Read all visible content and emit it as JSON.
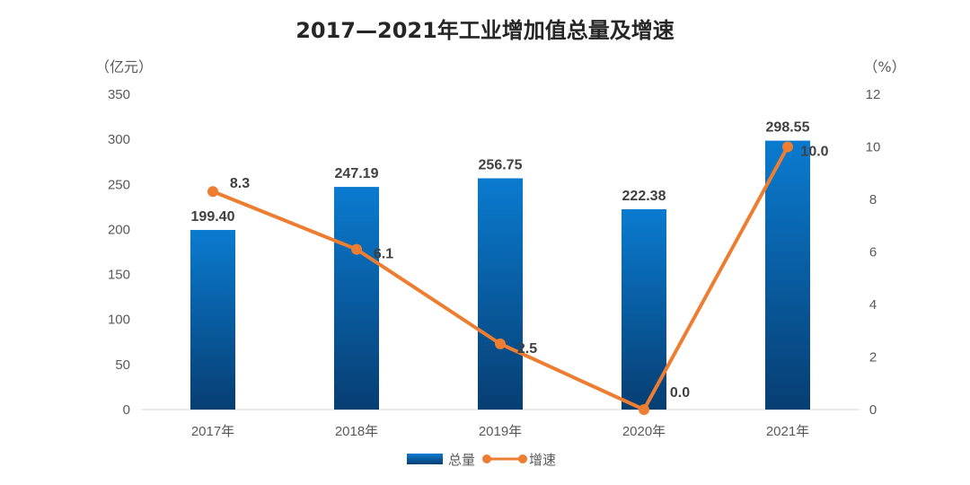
{
  "chart_data": {
    "type": "bar+line",
    "title": "2017—2021年工业增加值总量及增速",
    "categories": [
      "2017年",
      "2018年",
      "2019年",
      "2020年",
      "2021年"
    ],
    "series": [
      {
        "name": "总量",
        "type": "bar",
        "axis": "left",
        "values": [
          199.4,
          247.19,
          256.75,
          222.38,
          298.55
        ],
        "labels": [
          "199.40",
          "247.19",
          "256.75",
          "222.38",
          "298.55"
        ],
        "color": "#0A7BD0"
      },
      {
        "name": "增速",
        "type": "line",
        "axis": "right",
        "values": [
          8.3,
          6.1,
          2.5,
          0.0,
          10.0
        ],
        "labels": [
          "8.3",
          "6.1",
          "2.5",
          "0.0",
          "10.0"
        ],
        "color": "#ED7D31"
      }
    ],
    "y_left": {
      "unit": "（亿元）",
      "ylim": [
        0,
        350
      ],
      "ticks": [
        "0",
        "50",
        "100",
        "150",
        "200",
        "250",
        "300",
        "350"
      ]
    },
    "y_right": {
      "unit": "（%）",
      "ylim": [
        0,
        12
      ],
      "ticks": [
        "0",
        "2",
        "4",
        "6",
        "8",
        "10",
        "12"
      ]
    },
    "grid": false,
    "legend": "bottom"
  }
}
